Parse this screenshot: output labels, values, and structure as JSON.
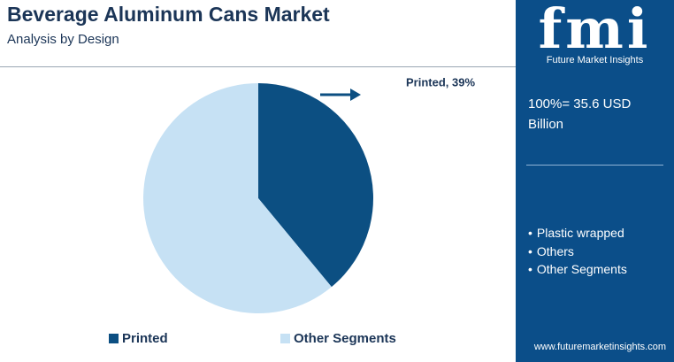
{
  "chart_data": {
    "type": "pie",
    "title": "Beverage Aluminum Cans Market",
    "subtitle": "Analysis by Design",
    "categories": [
      "Printed",
      "Other Segments"
    ],
    "values": [
      39,
      61
    ],
    "value_labels": [
      "Printed, 39%",
      null
    ],
    "colors": [
      "#0c4f82",
      "#c6e1f4"
    ],
    "legend": "bottom"
  },
  "sidebar": {
    "logo": "fmi",
    "logo_caption": "Future Market Insights",
    "total": "100%= 35.6 USD Billion",
    "items": [
      "Plastic wrapped",
      "Others",
      "Other Segments"
    ],
    "website": "www.futuremarketinsights.com"
  }
}
